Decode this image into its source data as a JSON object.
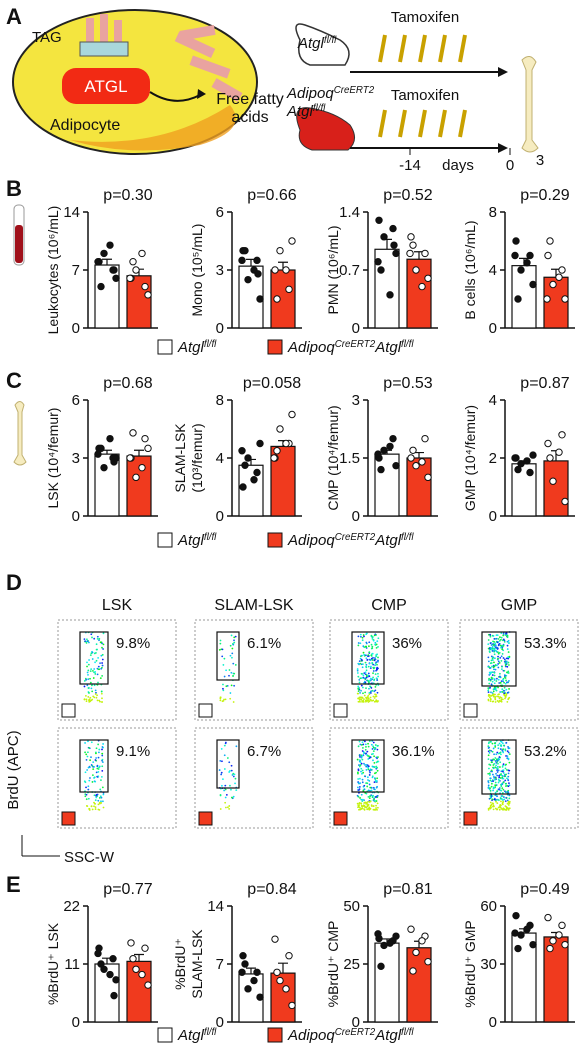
{
  "panel_labels": [
    "A",
    "B",
    "C",
    "D",
    "E"
  ],
  "panel_a": {
    "tag": "TAG",
    "enzyme": "ATGL",
    "cell": "Adipocyte",
    "product": [
      "Free fatty",
      "acids"
    ],
    "drug": [
      "Tamoxifen",
      "Tamoxifen"
    ],
    "mouse_wt": [
      {
        "text": "Atgl"
      },
      {
        "text": "fl/fl",
        "sup": true
      }
    ],
    "mouse_ko": [
      [
        {
          "text": "Adipoq"
        },
        {
          "text": "CreERT2",
          "sup": true
        }
      ],
      [
        {
          "text": "Atgl"
        },
        {
          "text": "fl/fl",
          "sup": true
        }
      ]
    ],
    "timeline": [
      "-14",
      "days",
      "0",
      "3"
    ]
  },
  "legends": [
    [
      {
        "color": "#ffffff",
        "parts": [
          {
            "text": "Atgl"
          },
          {
            "text": "fl/fl",
            "sup": true
          }
        ]
      },
      {
        "color": "#f03a1e",
        "parts": [
          {
            "text": "Adipoq"
          },
          {
            "text": "CreERT2",
            "sup": true
          },
          {
            "text": "Atgl"
          },
          {
            "text": "fl/fl",
            "sup": true
          }
        ]
      }
    ],
    [
      {
        "color": "#ffffff",
        "parts": [
          {
            "text": "Atgl"
          },
          {
            "text": "fl/fl",
            "sup": true
          }
        ]
      },
      {
        "color": "#f03a1e",
        "parts": [
          {
            "text": "Adipoq"
          },
          {
            "text": "CreERT2",
            "sup": true
          },
          {
            "text": "Atgl"
          },
          {
            "text": "fl/fl",
            "sup": true
          }
        ]
      }
    ],
    [
      {
        "color": "#ffffff",
        "parts": [
          {
            "text": "Atgl"
          },
          {
            "text": "fl/fl",
            "sup": true
          }
        ]
      },
      {
        "color": "#f03a1e",
        "parts": [
          {
            "text": "Adipoq"
          },
          {
            "text": "CreERT2",
            "sup": true
          },
          {
            "text": "Atgl"
          },
          {
            "text": "fl/fl",
            "sup": true
          }
        ]
      }
    ]
  ],
  "chart_data": [
    {
      "type": "bar",
      "y_label": [
        "Leukocytes (10⁶/mL)"
      ],
      "annotation": "p=0.30",
      "ylim": [
        0,
        14
      ],
      "yticks": [
        0,
        7,
        14
      ],
      "series": [
        {
          "color": "#ffffff",
          "marker": "filled",
          "value": 7.6,
          "error": 0.7,
          "points": [
            8,
            7,
            9,
            6,
            5,
            10,
            8,
            7
          ]
        },
        {
          "color": "#f03a1e",
          "marker": "open",
          "value": 6.3,
          "error": 0.8,
          "points": [
            6,
            5,
            7,
            4,
            8,
            9,
            6
          ]
        }
      ]
    },
    {
      "type": "bar",
      "y_label": [
        "Mono (10⁵/mL)"
      ],
      "annotation": "p=0.66",
      "ylim": [
        0,
        6
      ],
      "yticks": [
        0,
        3,
        6
      ],
      "series": [
        {
          "color": "#ffffff",
          "marker": "filled",
          "value": 3.2,
          "error": 0.35,
          "points": [
            4,
            3.5,
            2.5,
            1.5,
            4,
            3,
            3.5,
            2.8
          ]
        },
        {
          "color": "#f03a1e",
          "marker": "open",
          "value": 3.0,
          "error": 0.4,
          "points": [
            3,
            2,
            4,
            4.5,
            1.5,
            3
          ]
        }
      ]
    },
    {
      "type": "bar",
      "y_label": [
        "PMN (10⁶/mL)"
      ],
      "annotation": "p=0.52",
      "ylim": [
        0,
        1.4
      ],
      "yticks": [
        0,
        0.7,
        1.4
      ],
      "series": [
        {
          "color": "#ffffff",
          "marker": "filled",
          "value": 0.95,
          "error": 0.12,
          "points": [
            1.3,
            1.2,
            1.1,
            0.9,
            0.7,
            0.4,
            0.8,
            1.0
          ]
        },
        {
          "color": "#f03a1e",
          "marker": "open",
          "value": 0.83,
          "error": 0.09,
          "points": [
            1.1,
            0.9,
            0.7,
            0.6,
            1.0,
            0.5,
            0.9
          ]
        }
      ]
    },
    {
      "type": "bar",
      "y_label": [
        "B cells (10⁶/mL)"
      ],
      "annotation": "p=0.29",
      "ylim": [
        0,
        8
      ],
      "yticks": [
        0,
        4,
        8
      ],
      "series": [
        {
          "color": "#ffffff",
          "marker": "filled",
          "value": 4.3,
          "error": 0.5,
          "points": [
            6,
            5,
            4,
            3,
            2,
            4.5,
            5
          ]
        },
        {
          "color": "#f03a1e",
          "marker": "open",
          "value": 3.5,
          "error": 0.55,
          "points": [
            5,
            4,
            3,
            2,
            6,
            3.5,
            2
          ]
        }
      ]
    },
    {
      "type": "bar",
      "y_label": [
        "LSK (10⁴/femur)"
      ],
      "annotation": "p=0.68",
      "ylim": [
        0,
        6
      ],
      "yticks": [
        0,
        3,
        6
      ],
      "series": [
        {
          "color": "#ffffff",
          "marker": "filled",
          "value": 3.2,
          "error": 0.2,
          "points": [
            3.5,
            3,
            2.5,
            3,
            3.5,
            4,
            3.2,
            2.8
          ]
        },
        {
          "color": "#f03a1e",
          "marker": "open",
          "value": 3.1,
          "error": 0.3,
          "points": [
            3,
            4,
            2,
            3.5,
            4.3,
            2.5,
            3
          ]
        }
      ]
    },
    {
      "type": "bar",
      "y_label": [
        "SLAM-LSK",
        "(10³/femur)"
      ],
      "annotation": "p=0.058",
      "ylim": [
        0,
        8
      ],
      "yticks": [
        0,
        4,
        8
      ],
      "series": [
        {
          "color": "#ffffff",
          "marker": "filled",
          "value": 3.5,
          "error": 0.4,
          "points": [
            2,
            3,
            4,
            5,
            3.5,
            2.5,
            4.5
          ]
        },
        {
          "color": "#f03a1e",
          "marker": "open",
          "value": 4.8,
          "error": 0.4,
          "points": [
            4,
            5,
            6,
            7,
            4.5,
            5,
            4
          ]
        }
      ]
    },
    {
      "type": "bar",
      "y_label": [
        "CMP (10⁴/femur)"
      ],
      "annotation": "p=0.53",
      "ylim": [
        0,
        3
      ],
      "yticks": [
        0,
        1.5,
        3
      ],
      "series": [
        {
          "color": "#ffffff",
          "marker": "filled",
          "value": 1.6,
          "error": 0.1,
          "points": [
            1.5,
            2,
            1.7,
            1.3,
            1.2,
            1.8,
            1.6
          ]
        },
        {
          "color": "#f03a1e",
          "marker": "open",
          "value": 1.5,
          "error": 0.14,
          "points": [
            1.5,
            2,
            1.3,
            1.0,
            1.7,
            1.4
          ]
        }
      ]
    },
    {
      "type": "bar",
      "y_label": [
        "GMP (10⁴/femur)"
      ],
      "annotation": "p=0.87",
      "ylim": [
        0,
        4
      ],
      "yticks": [
        0,
        2,
        4
      ],
      "series": [
        {
          "color": "#ffffff",
          "marker": "filled",
          "value": 1.8,
          "error": 0.1,
          "points": [
            2,
            1.5,
            1.8,
            2.1,
            1.6,
            1.9,
            2
          ]
        },
        {
          "color": "#f03a1e",
          "marker": "open",
          "value": 1.9,
          "error": 0.35,
          "points": [
            2.5,
            2.8,
            1.2,
            0.5,
            2,
            2.2
          ]
        }
      ]
    },
    {
      "type": "bar",
      "y_label": [
        "%BrdU⁺ LSK"
      ],
      "annotation": "p=0.77",
      "ylim": [
        0,
        22
      ],
      "yticks": [
        0,
        11,
        22
      ],
      "series": [
        {
          "color": "#ffffff",
          "marker": "filled",
          "value": 11,
          "error": 1.1,
          "points": [
            14,
            12,
            10,
            8,
            11,
            9,
            13,
            5
          ]
        },
        {
          "color": "#f03a1e",
          "marker": "open",
          "value": 11.5,
          "error": 1.3,
          "points": [
            15,
            14,
            10,
            7,
            12,
            9
          ]
        }
      ]
    },
    {
      "type": "bar",
      "y_label": [
        "%BrdU⁺",
        "SLAM-LSK"
      ],
      "annotation": "p=0.84",
      "ylim": [
        0,
        14
      ],
      "yticks": [
        0,
        7,
        14
      ],
      "series": [
        {
          "color": "#ffffff",
          "marker": "filled",
          "value": 5.8,
          "error": 0.7,
          "points": [
            8,
            6,
            4,
            3,
            7,
            5,
            6
          ]
        },
        {
          "color": "#f03a1e",
          "marker": "open",
          "value": 5.9,
          "error": 1.2,
          "points": [
            10,
            8,
            5,
            2,
            6,
            4
          ]
        }
      ]
    },
    {
      "type": "bar",
      "y_label": [
        "%BrdU⁺ CMP"
      ],
      "annotation": "p=0.81",
      "ylim": [
        0,
        50
      ],
      "yticks": [
        0,
        25,
        50
      ],
      "series": [
        {
          "color": "#ffffff",
          "marker": "filled",
          "value": 34,
          "error": 1.8,
          "points": [
            36,
            35,
            33,
            37,
            24,
            34,
            38
          ]
        },
        {
          "color": "#f03a1e",
          "marker": "open",
          "value": 32,
          "error": 2.8,
          "points": [
            40,
            37,
            30,
            26,
            22,
            35
          ]
        }
      ]
    },
    {
      "type": "bar",
      "y_label": [
        "%BrdU⁺ GMP"
      ],
      "annotation": "p=0.49",
      "ylim": [
        0,
        60
      ],
      "yticks": [
        0,
        30,
        60
      ],
      "series": [
        {
          "color": "#ffffff",
          "marker": "filled",
          "value": 46,
          "error": 2.2,
          "points": [
            55,
            50,
            45,
            40,
            38,
            48,
            46
          ]
        },
        {
          "color": "#f03a1e",
          "marker": "open",
          "value": 44,
          "error": 2.3,
          "points": [
            54,
            50,
            42,
            40,
            38,
            45
          ]
        }
      ]
    }
  ],
  "panel_d": {
    "columns": [
      "LSK",
      "SLAM-LSK",
      "CMP",
      "GMP"
    ],
    "gates": [
      [
        "9.8%",
        "6.1%",
        "36%",
        "53.3%"
      ],
      [
        "9.1%",
        "6.7%",
        "36.1%",
        "53.2%"
      ]
    ],
    "y_label": "BrdU (APC)",
    "x_label": "SSC-W"
  }
}
